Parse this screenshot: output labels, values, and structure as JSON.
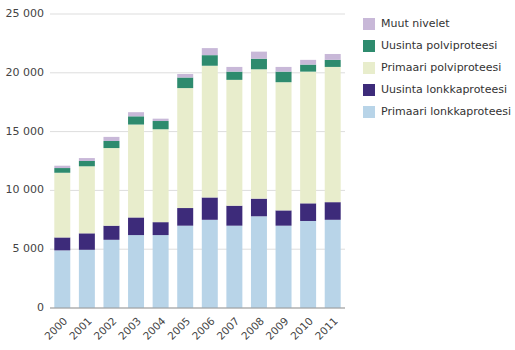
{
  "chart_data": {
    "type": "bar",
    "stacked": true,
    "categories": [
      "2000",
      "2001",
      "2002",
      "2003",
      "2004",
      "2005",
      "2006",
      "2007",
      "2008",
      "2009",
      "2010",
      "2011"
    ],
    "series": [
      {
        "name": "Primaari lonkkaproteesi",
        "color": "#b8d4e8",
        "values": [
          4900,
          4950,
          5800,
          6200,
          6200,
          7000,
          7500,
          7000,
          7800,
          7000,
          7400,
          7500
        ]
      },
      {
        "name": "Uusinta lonkkaproteesi",
        "color": "#3d2b7a",
        "values": [
          1100,
          1400,
          1200,
          1500,
          1100,
          1500,
          1900,
          1700,
          1500,
          1300,
          1500,
          1500
        ]
      },
      {
        "name": "Primaari polviproteesi",
        "color": "#e8edcc",
        "values": [
          5500,
          5700,
          6600,
          7900,
          7900,
          10200,
          11200,
          10700,
          11000,
          10900,
          11200,
          11500
        ]
      },
      {
        "name": "Uusinta polviproteesi",
        "color": "#2e8b6e",
        "values": [
          400,
          450,
          600,
          700,
          700,
          900,
          900,
          700,
          900,
          900,
          600,
          600
        ]
      },
      {
        "name": "Muut nivelet",
        "color": "#c8b8d8",
        "values": [
          200,
          250,
          350,
          350,
          200,
          300,
          600,
          400,
          600,
          400,
          400,
          500
        ]
      }
    ],
    "ylim": [
      0,
      25000
    ],
    "yticks": [
      0,
      {
        "value": 5000,
        "label": "5 000"
      },
      {
        "value": 10000,
        "label": "10 000"
      },
      {
        "value": 15000,
        "label": "15 000"
      },
      {
        "value": 20000,
        "label": "20 000"
      },
      {
        "value": 25000,
        "label": "25 000"
      }
    ],
    "grid": true,
    "legend": "right"
  }
}
